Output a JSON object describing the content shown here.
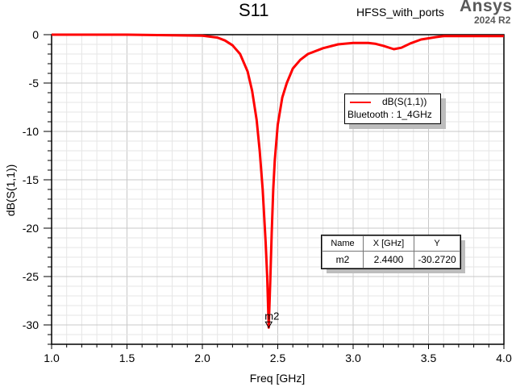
{
  "header": {
    "title": "S11",
    "project": "HFSS_with_ports",
    "brand": "Ansys",
    "brand_version": "2024 R2"
  },
  "legend": {
    "series_label": "dB(S(1,1))",
    "setup_label": "Bluetooth : 1_4GHz",
    "color": "#ff0000"
  },
  "marker": {
    "label": "m2",
    "table": {
      "headers": [
        "Name",
        "X [GHz]",
        "Y"
      ],
      "rows": [
        [
          "m2",
          "2.4400",
          "-30.2720"
        ]
      ]
    }
  },
  "axes": {
    "xlabel": "Freq [GHz]",
    "ylabel": "dB(S(1,1))",
    "xticks": [
      "1.0",
      "1.5",
      "2.0",
      "2.5",
      "3.0",
      "3.5",
      "4.0"
    ],
    "yticks": [
      "0",
      "-5",
      "-10",
      "-15",
      "-20",
      "-25",
      "-30"
    ]
  },
  "chart_data": {
    "type": "line",
    "title": "S11",
    "xlabel": "Freq [GHz]",
    "ylabel": "dB(S(1,1))",
    "xlim": [
      1.0,
      4.0
    ],
    "ylim": [
      -32,
      0
    ],
    "grid": true,
    "legend_position": "upper right (inside plot)",
    "x_tick_labels": [
      "1.0",
      "1.5",
      "2.0",
      "2.5",
      "3.0",
      "3.5",
      "4.0"
    ],
    "y_tick_labels": [
      "0",
      "-5",
      "-10",
      "-15",
      "-20",
      "-25",
      "-30"
    ],
    "series": [
      {
        "name": "dB(S(1,1)) — Bluetooth : 1_4GHz",
        "color": "#ff0000",
        "x": [
          1.0,
          1.5,
          1.75,
          2.0,
          2.1,
          2.15,
          2.2,
          2.25,
          2.3,
          2.33,
          2.36,
          2.38,
          2.4,
          2.42,
          2.43,
          2.44,
          2.45,
          2.46,
          2.47,
          2.48,
          2.5,
          2.53,
          2.56,
          2.6,
          2.65,
          2.7,
          2.8,
          2.9,
          3.0,
          3.1,
          3.15,
          3.2,
          3.27,
          3.32,
          3.38,
          3.45,
          3.55,
          3.6,
          3.8,
          4.0
        ],
        "values": [
          0.0,
          0.0,
          -0.05,
          -0.1,
          -0.3,
          -0.6,
          -1.1,
          -2.0,
          -3.8,
          -5.8,
          -8.8,
          -12.0,
          -16.0,
          -21.5,
          -25.0,
          -30.27,
          -25.5,
          -20.5,
          -16.0,
          -13.0,
          -9.3,
          -6.5,
          -5.0,
          -3.5,
          -2.6,
          -2.0,
          -1.4,
          -1.0,
          -0.85,
          -0.85,
          -0.95,
          -1.15,
          -1.5,
          -1.35,
          -0.9,
          -0.5,
          -0.25,
          -0.15,
          -0.15,
          -0.15
        ]
      }
    ],
    "annotations": [
      {
        "type": "marker",
        "name": "m2",
        "x": 2.44,
        "y": -30.272
      }
    ]
  }
}
